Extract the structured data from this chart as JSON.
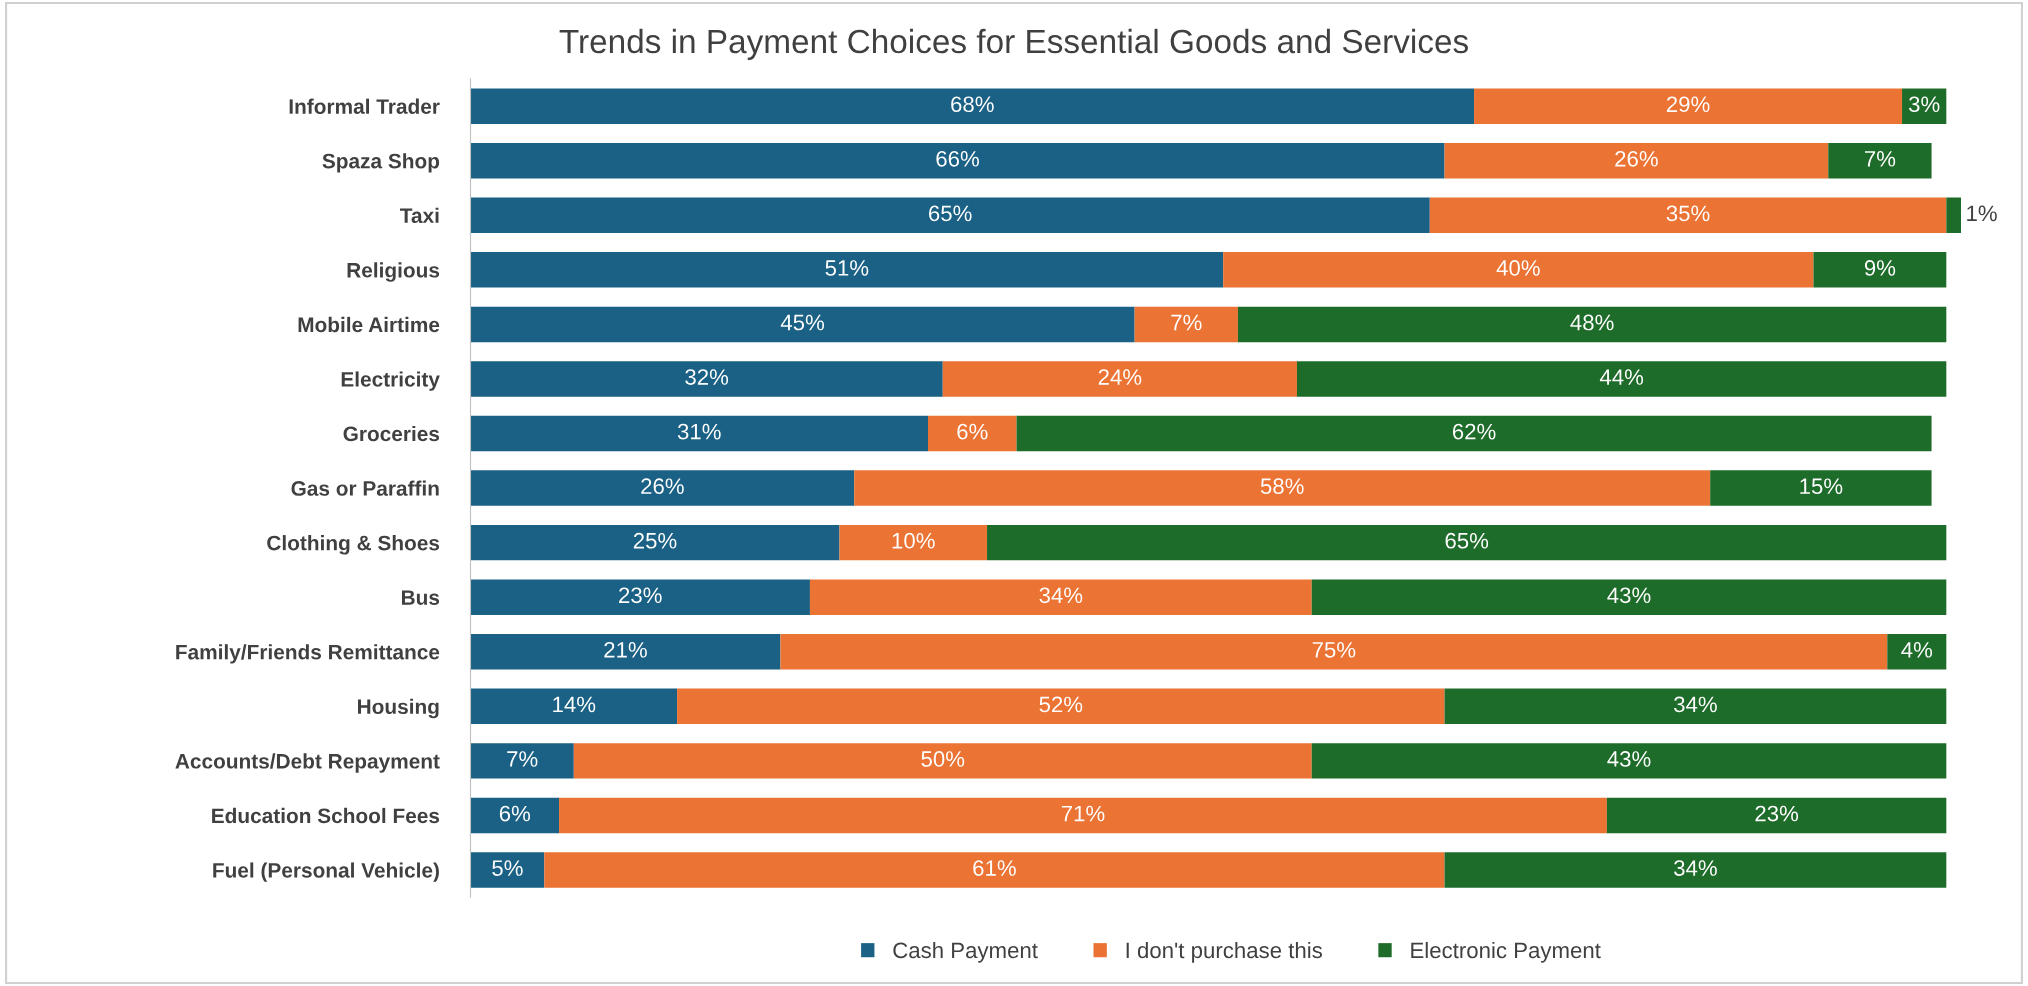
{
  "chart_data": {
    "type": "bar",
    "orientation": "horizontal",
    "stacked": true,
    "title": "Trends in Payment Choices for Essential Goods and Services",
    "categories": [
      "Informal Trader",
      "Spaza Shop",
      "Taxi",
      "Religious",
      "Mobile Airtime",
      "Electricity",
      "Groceries",
      "Gas or Paraffin",
      "Clothing & Shoes",
      "Bus",
      "Family/Friends Remittance",
      "Housing",
      "Accounts/Debt Repayment",
      "Education School Fees",
      "Fuel (Personal Vehicle)"
    ],
    "series": [
      {
        "name": "Cash Payment",
        "color": "#1a6185",
        "values": [
          68,
          66,
          65,
          51,
          45,
          32,
          31,
          26,
          25,
          23,
          21,
          14,
          7,
          6,
          5
        ],
        "value_labels": [
          "68%",
          "66%",
          "65%",
          "51%",
          "45%",
          "32%",
          "31%",
          "26%",
          "25%",
          "23%",
          "21%",
          "14%",
          "7%",
          "6%",
          "5%"
        ]
      },
      {
        "name": "I don't purchase this",
        "color": "#eb7333",
        "values": [
          29,
          26,
          35,
          40,
          7,
          24,
          6,
          58,
          10,
          34,
          75,
          52,
          50,
          71,
          61
        ],
        "value_labels": [
          "29%",
          "26%",
          "35%",
          "40%",
          "7%",
          "24%",
          "6%",
          "58%",
          "10%",
          "34%",
          "75%",
          "52%",
          "50%",
          "71%",
          "61%"
        ]
      },
      {
        "name": "Electronic Payment",
        "color": "#1e6c2a",
        "values": [
          3,
          7,
          1,
          9,
          48,
          44,
          62,
          15,
          65,
          43,
          4,
          34,
          43,
          23,
          34
        ],
        "value_labels": [
          "3%",
          "7%",
          "1%",
          "9%",
          "48%",
          "44%",
          "62%",
          "15%",
          "65%",
          "43%",
          "4%",
          "34%",
          "43%",
          "23%",
          "34%"
        ]
      }
    ],
    "tick_labels": "y",
    "legend": "bottom"
  }
}
